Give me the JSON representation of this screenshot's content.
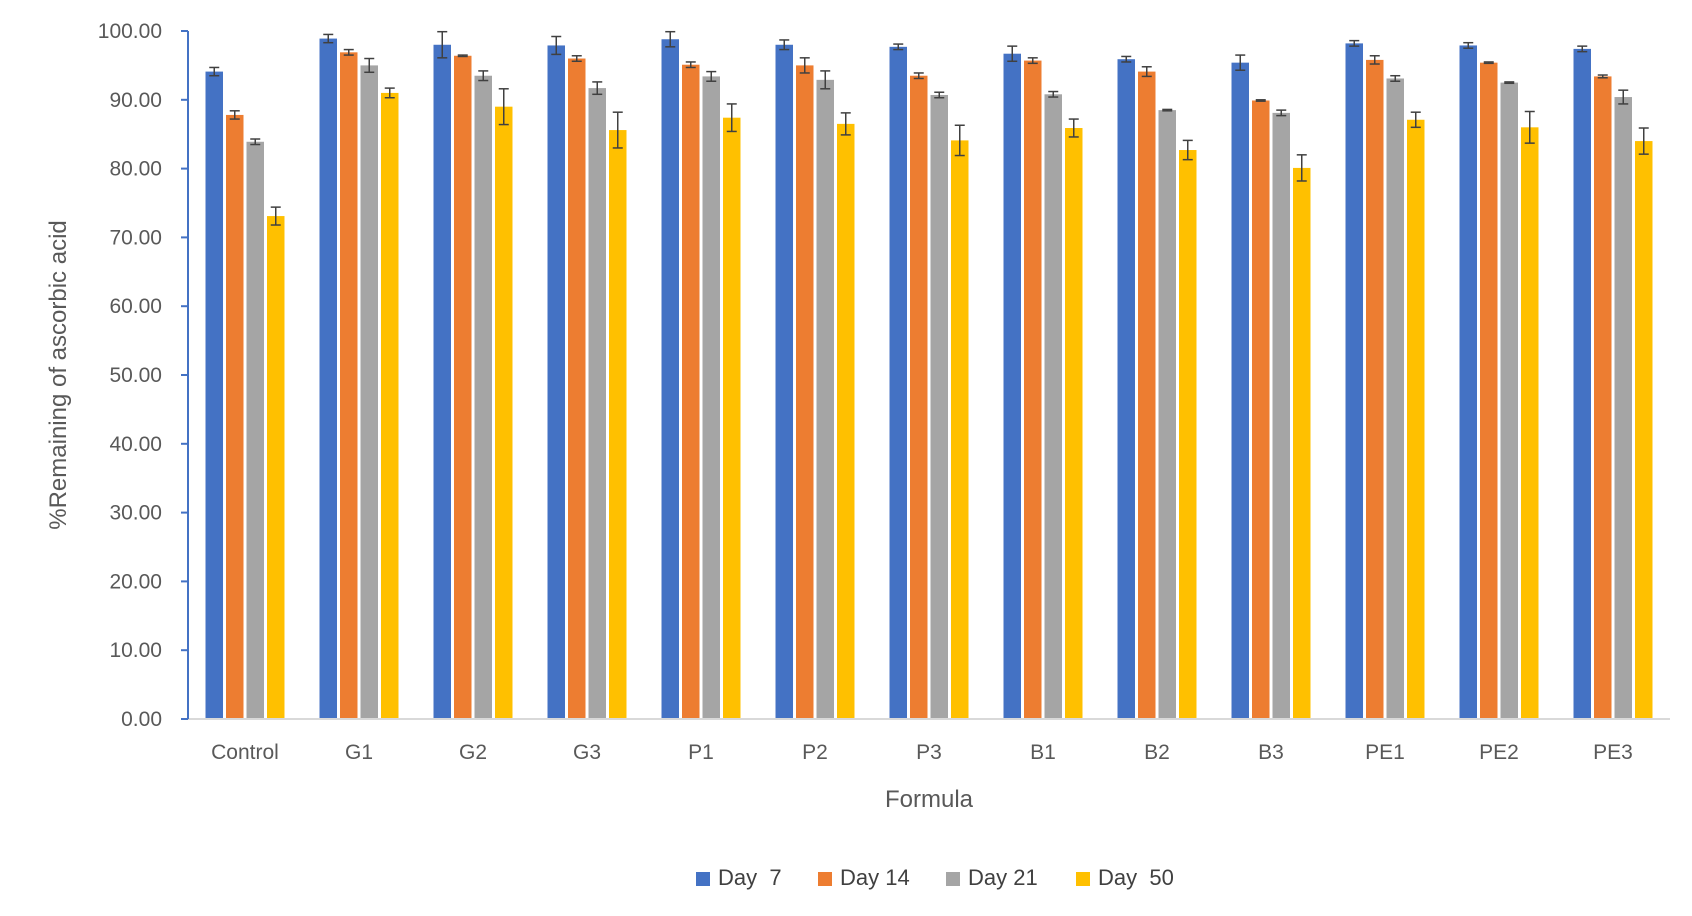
{
  "chart_data": {
    "type": "bar",
    "xlabel": "Formula",
    "ylabel": "%Remaining of ascorbic acid",
    "ylim": [
      0,
      100
    ],
    "ytick_step": 10,
    "ytick_labels": [
      "0.00",
      "10.00",
      "20.00",
      "30.00",
      "40.00",
      "50.00",
      "60.00",
      "70.00",
      "80.00",
      "90.00",
      "100.00"
    ],
    "grid": false,
    "legend_position": "bottom",
    "categories": [
      "Control",
      "G1",
      "G2",
      "G3",
      "P1",
      "P2",
      "P3",
      "B1",
      "B2",
      "B3",
      "PE1",
      "PE2",
      "PE3"
    ],
    "series": [
      {
        "name": "Day  7",
        "color": "#4472C4",
        "values": [
          94.1,
          98.9,
          98.0,
          97.9,
          98.8,
          98.0,
          97.7,
          96.7,
          95.9,
          95.4,
          98.2,
          97.9,
          97.4
        ],
        "errors": [
          0.6,
          0.6,
          1.9,
          1.3,
          1.1,
          0.7,
          0.4,
          1.1,
          0.4,
          1.1,
          0.4,
          0.4,
          0.4
        ]
      },
      {
        "name": "Day 14",
        "color": "#ED7D31",
        "values": [
          87.8,
          96.9,
          96.4,
          96.0,
          95.1,
          95.0,
          93.5,
          95.7,
          94.1,
          89.9,
          95.8,
          95.4,
          93.4
        ],
        "errors": [
          0.6,
          0.4,
          0.1,
          0.4,
          0.4,
          1.1,
          0.4,
          0.4,
          0.7,
          0.1,
          0.6,
          0.1,
          0.2
        ]
      },
      {
        "name": "Day 21",
        "color": "#A5A5A5",
        "values": [
          83.9,
          95.0,
          93.5,
          91.7,
          93.4,
          92.9,
          90.7,
          90.8,
          88.5,
          88.1,
          93.1,
          92.5,
          90.4
        ],
        "errors": [
          0.4,
          1.0,
          0.7,
          0.9,
          0.7,
          1.3,
          0.4,
          0.4,
          0.1,
          0.4,
          0.4,
          0.1,
          1.0
        ]
      },
      {
        "name": "Day  50",
        "color": "#FFC000",
        "values": [
          73.1,
          91.0,
          89.0,
          85.6,
          87.4,
          86.5,
          84.1,
          85.9,
          82.7,
          80.1,
          87.1,
          86.0,
          84.0
        ],
        "errors": [
          1.3,
          0.7,
          2.6,
          2.6,
          2.0,
          1.6,
          2.2,
          1.3,
          1.4,
          1.9,
          1.1,
          2.3,
          1.9
        ]
      }
    ]
  }
}
